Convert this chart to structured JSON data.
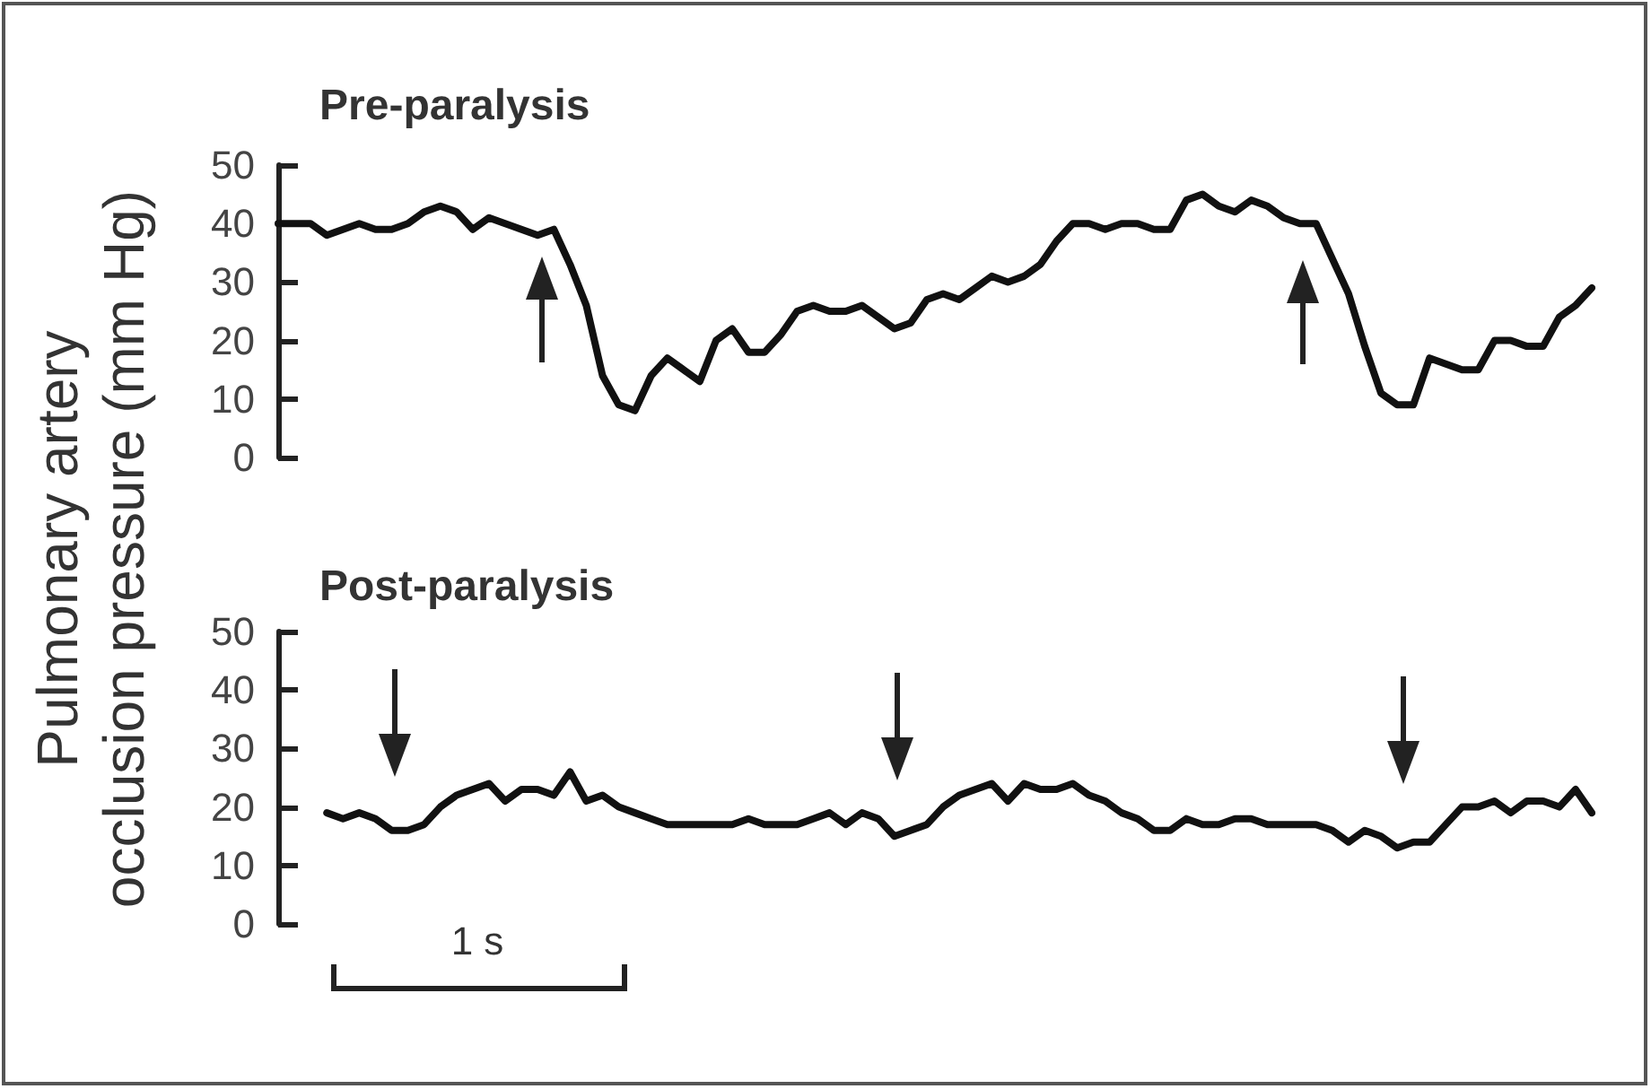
{
  "chart_data": [
    {
      "type": "line",
      "title": "Pre-paralysis",
      "ylabel": "Pulmonary artery\nocclusion pressure (mm Hg)",
      "categories": [
        null,
        null,
        null,
        null,
        null,
        null,
        null,
        null,
        null,
        null,
        null,
        null,
        null,
        null,
        null,
        null,
        null,
        null,
        null,
        null,
        null,
        null,
        null,
        null,
        null,
        null,
        null,
        null,
        null,
        null,
        null,
        null,
        null,
        null,
        null,
        null,
        null,
        null,
        null,
        null,
        null,
        null,
        null,
        null,
        null,
        null,
        null,
        null,
        null,
        null,
        null,
        null,
        null,
        null,
        null,
        null,
        null,
        null,
        null,
        null,
        null,
        null,
        null,
        null,
        null,
        null,
        null,
        null,
        null,
        null,
        null,
        null,
        null,
        null,
        null,
        null,
        null,
        null,
        null,
        null,
        null,
        null
      ],
      "values": [
        40,
        40,
        40,
        38,
        39,
        40,
        39,
        39,
        40,
        42,
        43,
        42,
        39,
        41,
        40,
        39,
        38,
        39,
        33,
        26,
        14,
        9,
        8,
        14,
        17,
        15,
        13,
        20,
        22,
        18,
        18,
        21,
        25,
        26,
        25,
        25,
        26,
        24,
        22,
        23,
        27,
        28,
        27,
        29,
        31,
        30,
        31,
        33,
        37,
        40,
        40,
        39,
        40,
        40,
        39,
        39,
        44,
        45,
        43,
        42,
        44,
        43,
        41,
        40,
        40,
        34,
        28,
        19,
        11,
        9,
        9,
        17,
        16,
        15,
        15,
        20,
        20,
        19,
        19,
        24,
        26,
        29
      ],
      "color": "#111111",
      "ylim": [
        0,
        50
      ],
      "yticks": [
        0,
        10,
        20,
        30,
        40,
        50
      ]
    },
    {
      "type": "line",
      "title": "Post-paralysis",
      "categories": [
        null,
        null,
        null,
        null,
        null,
        null,
        null,
        null,
        null,
        null,
        null,
        null,
        null,
        null,
        null,
        null,
        null,
        null,
        null,
        null,
        null,
        null,
        null,
        null,
        null,
        null,
        null,
        null,
        null,
        null,
        null,
        null,
        null,
        null,
        null,
        null,
        null,
        null,
        null,
        null,
        null,
        null,
        null,
        null,
        null,
        null,
        null,
        null,
        null,
        null,
        null,
        null,
        null,
        null,
        null,
        null,
        null,
        null,
        null,
        null,
        null,
        null,
        null,
        null,
        null,
        null,
        null,
        null,
        null,
        null,
        null,
        null,
        null,
        null,
        null,
        null,
        null,
        null,
        null,
        null,
        null,
        null
      ],
      "values": [
        null,
        null,
        null,
        19,
        18,
        19,
        18,
        16,
        16,
        17,
        20,
        22,
        23,
        24,
        21,
        23,
        23,
        22,
        26,
        21,
        22,
        20,
        19,
        18,
        17,
        17,
        17,
        17,
        17,
        18,
        17,
        17,
        17,
        18,
        19,
        17,
        19,
        18,
        15,
        16,
        17,
        20,
        22,
        23,
        24,
        21,
        24,
        23,
        23,
        24,
        22,
        21,
        19,
        18,
        16,
        16,
        18,
        17,
        17,
        18,
        18,
        17,
        17,
        17,
        17,
        16,
        14,
        16,
        15,
        13,
        14,
        14,
        17,
        20,
        20,
        21,
        19,
        21,
        21,
        20,
        23,
        19
      ],
      "color": "#111111",
      "ylim": [
        0,
        50
      ],
      "yticks": [
        0,
        10,
        20,
        30,
        40,
        50
      ],
      "annotations": [
        "1 s"
      ]
    }
  ]
}
